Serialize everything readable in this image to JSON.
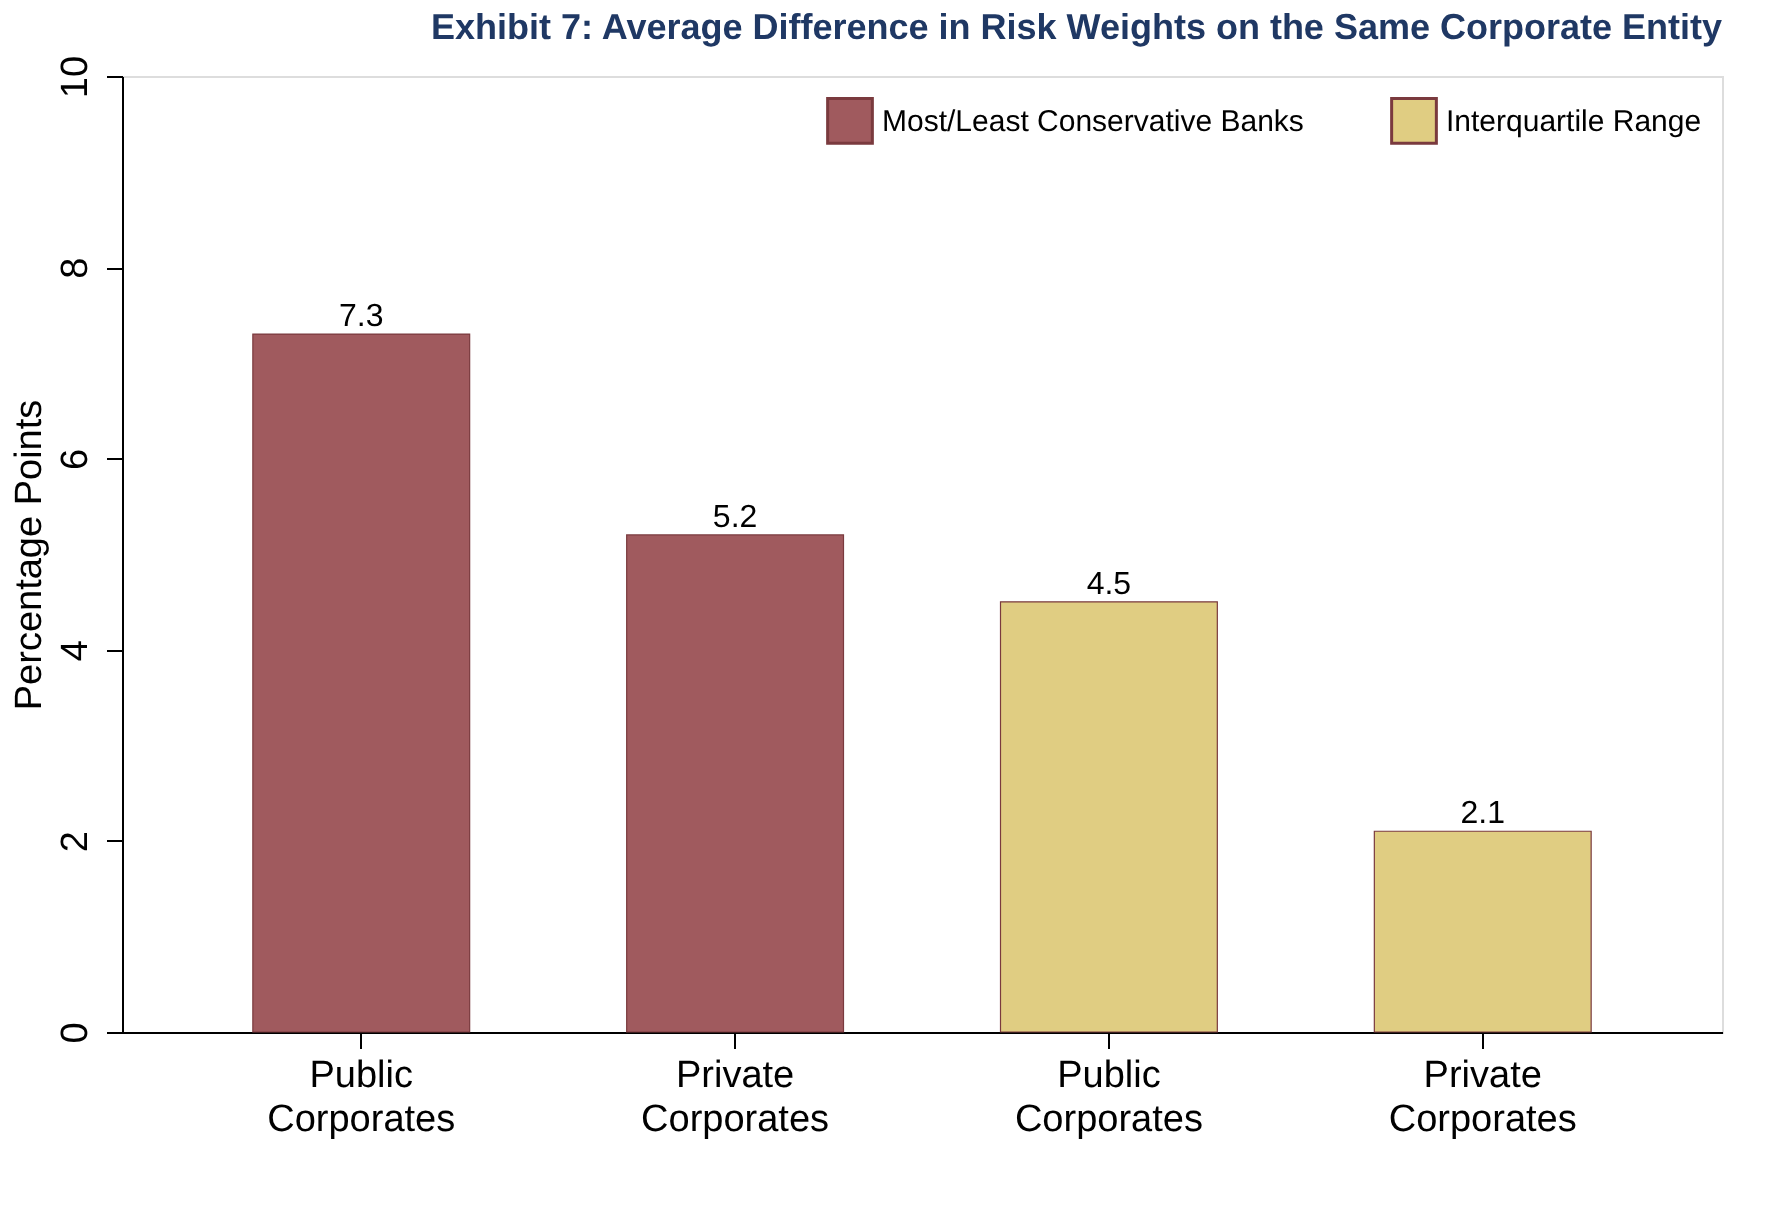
{
  "chart_data": {
    "type": "bar",
    "title": "Exhibit 7: Average Difference in Risk Weights on the Same Corporate Entity",
    "ylabel": "Percentage Points",
    "categories": [
      "Public Corporates",
      "Private Corporates",
      "Public Corporates",
      "Private Corporates"
    ],
    "series": [
      {
        "name": "Most/Least Conservative Banks",
        "color": "#a05a5e",
        "values": [
          7.3,
          5.2,
          null,
          null
        ]
      },
      {
        "name": "Interquartile Range",
        "color": "#e0cd82",
        "values": [
          null,
          null,
          4.5,
          2.1
        ]
      }
    ],
    "ylim": [
      0,
      10
    ],
    "yticks": [
      0,
      2,
      4,
      6,
      8,
      10
    ],
    "data_labels": true,
    "grid": false,
    "legend": "top right"
  }
}
